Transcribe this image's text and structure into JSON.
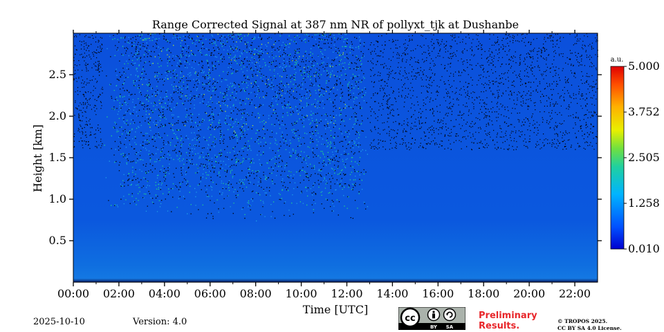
{
  "chart_data": {
    "type": "heatmap",
    "title": "Range Corrected Signal at 387 nm NR of pollyxt_tjk at Dushanbe",
    "xlabel": "Time [UTC]",
    "ylabel": "Height [km]",
    "x_ticks": [
      "00:00",
      "02:00",
      "04:00",
      "06:00",
      "08:00",
      "10:00",
      "12:00",
      "14:00",
      "16:00",
      "18:00",
      "20:00",
      "22:00"
    ],
    "x_tick_values_h": [
      0,
      2,
      4,
      6,
      8,
      10,
      12,
      14,
      16,
      18,
      20,
      22
    ],
    "xlim_h": [
      0,
      23
    ],
    "y_ticks": [
      "0.5",
      "1.0",
      "1.5",
      "2.0",
      "2.5"
    ],
    "y_tick_values_km": [
      0.5,
      1.0,
      1.5,
      2.0,
      2.5
    ],
    "ylim_km": [
      0,
      3.0
    ],
    "colorbar": {
      "unit": "a.u.",
      "ticks": [
        "0.010",
        "1.258",
        "2.505",
        "3.752",
        "5.000"
      ],
      "tick_values": [
        0.01,
        1.258,
        2.505,
        3.752,
        5.0
      ],
      "range": [
        0.01,
        5.0
      ],
      "colormap": "jet"
    },
    "noisy_region": {
      "time_range_h": [
        1.3,
        13.0
      ],
      "height_range_km": [
        0.7,
        3.0
      ],
      "description": "strong noise"
    },
    "background_color": "#0a52dc",
    "noise_colors": [
      "#000000",
      "#1fa0e6",
      "#23d28c",
      "#b4e632"
    ]
  },
  "footer": {
    "date": "2025-10-10",
    "version": "Version: 4.0",
    "preliminary": [
      "Preliminary",
      "Results."
    ],
    "copyright": [
      "© TROPOS 2025.",
      "CC BY SA 4.0 License."
    ],
    "badge": {
      "cc": "cc",
      "by": "BY",
      "sa": "SA"
    }
  }
}
